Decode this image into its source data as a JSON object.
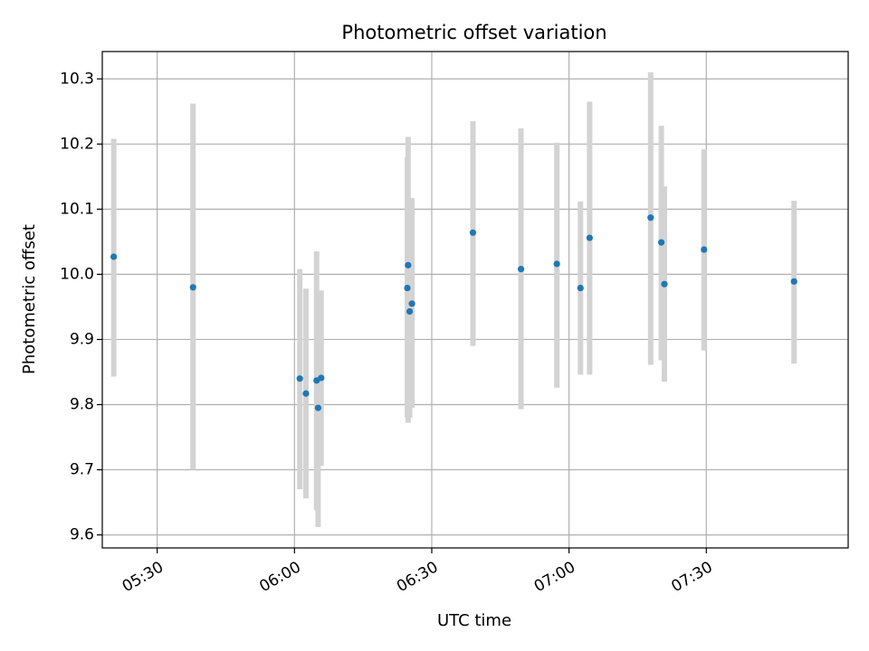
{
  "chart_data": {
    "type": "scatter",
    "title": "Photometric offset variation",
    "xlabel": "UTC time",
    "ylabel": "Photometric offset",
    "x_unit": "UTC time (HH:MM)",
    "xlim": [
      "05:18",
      "08:01"
    ],
    "ylim": [
      9.58,
      10.342
    ],
    "x_ticks": [
      "05:30",
      "06:00",
      "06:30",
      "07:00",
      "07:30"
    ],
    "y_ticks": [
      9.6,
      9.7,
      9.8,
      9.9,
      10.0,
      10.1,
      10.2,
      10.3
    ],
    "y_tick_labels": [
      "9.6",
      "9.7",
      "9.8",
      "9.9",
      "10.0",
      "10.1",
      "10.2",
      "10.3"
    ],
    "grid": true,
    "legend": "none",
    "colors": {
      "point": "#1f77b4",
      "errorbar": "#d3d3d3",
      "grid": "#b0b0b0",
      "axes": "#000000"
    },
    "series": [
      {
        "points": [
          {
            "x": "05:20:30",
            "y": 10.027,
            "ylow": 9.843,
            "yhigh": 10.208
          },
          {
            "x": "05:37:50",
            "y": 9.98,
            "ylow": 9.7,
            "yhigh": 10.262
          },
          {
            "x": "06:01:10",
            "y": 9.84,
            "ylow": 9.67,
            "yhigh": 10.008
          },
          {
            "x": "06:02:30",
            "y": 9.817,
            "ylow": 9.656,
            "yhigh": 9.978
          },
          {
            "x": "06:04:50",
            "y": 9.837,
            "ylow": 9.638,
            "yhigh": 10.035
          },
          {
            "x": "06:05:10",
            "y": 9.795,
            "ylow": 9.612,
            "yhigh": 9.975
          },
          {
            "x": "06:05:50",
            "y": 9.841,
            "ylow": 9.706,
            "yhigh": 9.975
          },
          {
            "x": "06:24:50",
            "y": 10.014,
            "ylow": 9.772,
            "yhigh": 10.211
          },
          {
            "x": "06:24:40",
            "y": 9.979,
            "ylow": 9.78,
            "yhigh": 10.18
          },
          {
            "x": "06:25:10",
            "y": 9.943,
            "ylow": 9.78,
            "yhigh": 10.11
          },
          {
            "x": "06:25:40",
            "y": 9.955,
            "ylow": 9.795,
            "yhigh": 10.117
          },
          {
            "x": "06:39:00",
            "y": 10.064,
            "ylow": 9.89,
            "yhigh": 10.235
          },
          {
            "x": "06:49:30",
            "y": 10.008,
            "ylow": 9.793,
            "yhigh": 10.224
          },
          {
            "x": "06:57:20",
            "y": 10.016,
            "ylow": 9.826,
            "yhigh": 10.202
          },
          {
            "x": "07:02:30",
            "y": 9.979,
            "ylow": 9.846,
            "yhigh": 10.112
          },
          {
            "x": "07:04:30",
            "y": 10.056,
            "ylow": 9.846,
            "yhigh": 10.265
          },
          {
            "x": "07:17:50",
            "y": 10.087,
            "ylow": 9.861,
            "yhigh": 10.31
          },
          {
            "x": "07:20:10",
            "y": 10.049,
            "ylow": 9.868,
            "yhigh": 10.228
          },
          {
            "x": "07:20:50",
            "y": 9.985,
            "ylow": 9.835,
            "yhigh": 10.135
          },
          {
            "x": "07:29:30",
            "y": 10.038,
            "ylow": 9.883,
            "yhigh": 10.192
          },
          {
            "x": "07:49:10",
            "y": 9.989,
            "ylow": 9.863,
            "yhigh": 10.113
          }
        ]
      }
    ]
  }
}
